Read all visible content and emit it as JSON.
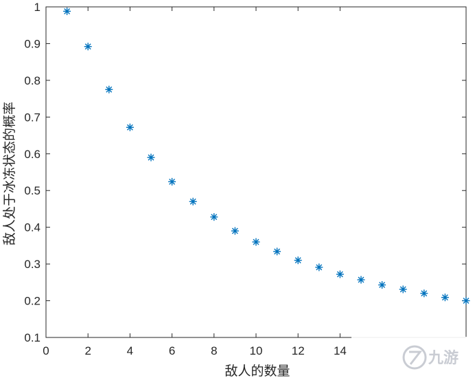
{
  "chart_data": {
    "type": "scatter",
    "title": "",
    "xlabel": "敌人的数量",
    "ylabel": "敌人处于冰冻状态的概率",
    "xlim": [
      0,
      20
    ],
    "ylim": [
      0.1,
      1
    ],
    "xticks": [
      "0",
      "2",
      "4",
      "6",
      "8",
      "10",
      "12",
      "14"
    ],
    "yticks": [
      "0.1",
      "0.2",
      "0.3",
      "0.4",
      "0.5",
      "0.6",
      "0.7",
      "0.8",
      "0.9",
      "1"
    ],
    "marker": "asterisk",
    "color": "#0072bd",
    "grid": false,
    "x": [
      1,
      2,
      3,
      4,
      5,
      6,
      7,
      8,
      9,
      10,
      11,
      12,
      13,
      14,
      15,
      16,
      17,
      18,
      19,
      20
    ],
    "y": [
      0.988,
      0.892,
      0.775,
      0.672,
      0.59,
      0.524,
      0.47,
      0.428,
      0.39,
      0.36,
      0.334,
      0.31,
      0.291,
      0.272,
      0.257,
      0.243,
      0.231,
      0.22,
      0.209,
      0.2
    ]
  },
  "watermark": {
    "text": "九游"
  }
}
